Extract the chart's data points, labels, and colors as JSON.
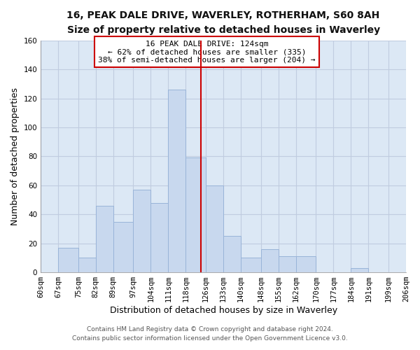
{
  "title_line1": "16, PEAK DALE DRIVE, WAVERLEY, ROTHERHAM, S60 8AH",
  "title_line2": "Size of property relative to detached houses in Waverley",
  "xlabel": "Distribution of detached houses by size in Waverley",
  "ylabel": "Number of detached properties",
  "bin_edges": [
    60,
    67,
    75,
    82,
    89,
    97,
    104,
    111,
    118,
    126,
    133,
    140,
    148,
    155,
    162,
    170,
    177,
    184,
    191,
    199,
    206
  ],
  "bar_heights": [
    0,
    17,
    10,
    46,
    35,
    57,
    48,
    126,
    79,
    60,
    25,
    10,
    16,
    11,
    11,
    0,
    0,
    3,
    0,
    0
  ],
  "bar_color": "#c8d8ee",
  "bar_edgecolor": "#99b4d8",
  "bar_linewidth": 0.7,
  "grid_color": "#c0cce0",
  "plot_bg_color": "#dce8f5",
  "property_line_x": 124,
  "property_line_color": "#cc0000",
  "ylim": [
    0,
    160
  ],
  "yticks": [
    0,
    20,
    40,
    60,
    80,
    100,
    120,
    140,
    160
  ],
  "annotation_title": "16 PEAK DALE DRIVE: 124sqm",
  "annotation_line1": "← 62% of detached houses are smaller (335)",
  "annotation_line2": "38% of semi-detached houses are larger (204) →",
  "annotation_box_facecolor": "#ffffff",
  "annotation_box_edgecolor": "#cc0000",
  "footer_line1": "Contains HM Land Registry data © Crown copyright and database right 2024.",
  "footer_line2": "Contains public sector information licensed under the Open Government Licence v3.0.",
  "bg_color": "#ffffff",
  "x_tick_labels": [
    "60sqm",
    "67sqm",
    "75sqm",
    "82sqm",
    "89sqm",
    "97sqm",
    "104sqm",
    "111sqm",
    "118sqm",
    "126sqm",
    "133sqm",
    "140sqm",
    "148sqm",
    "155sqm",
    "162sqm",
    "170sqm",
    "177sqm",
    "184sqm",
    "191sqm",
    "199sqm",
    "206sqm"
  ],
  "title_fontsize": 10,
  "subtitle_fontsize": 9,
  "xlabel_fontsize": 9,
  "ylabel_fontsize": 9,
  "tick_fontsize": 7.5,
  "footer_fontsize": 6.5,
  "ann_fontsize": 8
}
